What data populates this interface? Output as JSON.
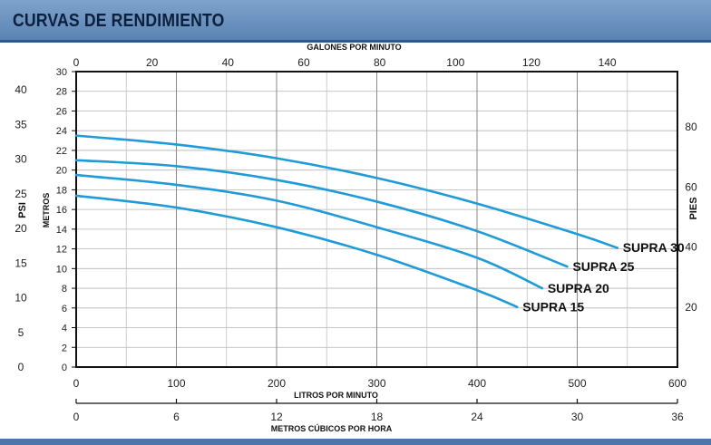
{
  "header": {
    "title": "CURVAS DE RENDIMIENTO"
  },
  "chart_data": {
    "type": "line",
    "title": "CURVAS DE RENDIMIENTO",
    "x": {
      "label": "LITROS POR MINUTO",
      "range": [
        0,
        600
      ],
      "ticks": [
        0,
        100,
        200,
        300,
        400,
        500,
        600
      ]
    },
    "x_top": {
      "label": "GALONES POR MINUTO",
      "ticks": [
        0,
        20,
        40,
        60,
        80,
        100,
        120,
        140
      ]
    },
    "x_bottom2": {
      "label": "METROS CÚBICOS POR HORA",
      "ticks": [
        0,
        6,
        12,
        18,
        24,
        30,
        36
      ]
    },
    "y": {
      "label": "METROS",
      "range": [
        0,
        30
      ],
      "ticks": [
        0,
        2,
        4,
        6,
        8,
        10,
        12,
        14,
        16,
        18,
        20,
        22,
        24,
        26,
        28,
        30
      ]
    },
    "y_left_outer": {
      "label": "PSI",
      "ticks": [
        0,
        5,
        10,
        15,
        20,
        25,
        30,
        35,
        40
      ]
    },
    "y_right": {
      "label": "PIES",
      "ticks": [
        20,
        40,
        60,
        80
      ]
    },
    "grid": true,
    "series": [
      {
        "name": "SUPRA 30",
        "color": "#1f9bd7",
        "x": [
          0,
          100,
          200,
          300,
          400,
          500,
          540
        ],
        "y": [
          23.5,
          22.6,
          21.2,
          19.2,
          16.6,
          13.5,
          12.1
        ]
      },
      {
        "name": "SUPRA 25",
        "color": "#1f9bd7",
        "x": [
          0,
          100,
          200,
          300,
          400,
          490
        ],
        "y": [
          21.0,
          20.4,
          19.0,
          16.8,
          13.8,
          10.2
        ]
      },
      {
        "name": "SUPRA 20",
        "color": "#1f9bd7",
        "x": [
          0,
          100,
          200,
          300,
          400,
          465
        ],
        "y": [
          19.5,
          18.5,
          16.9,
          14.2,
          11.1,
          8.0
        ]
      },
      {
        "name": "SUPRA 15",
        "color": "#1f9bd7",
        "x": [
          0,
          100,
          200,
          300,
          400,
          440
        ],
        "y": [
          17.4,
          16.2,
          14.2,
          11.4,
          7.8,
          6.1
        ]
      }
    ]
  }
}
